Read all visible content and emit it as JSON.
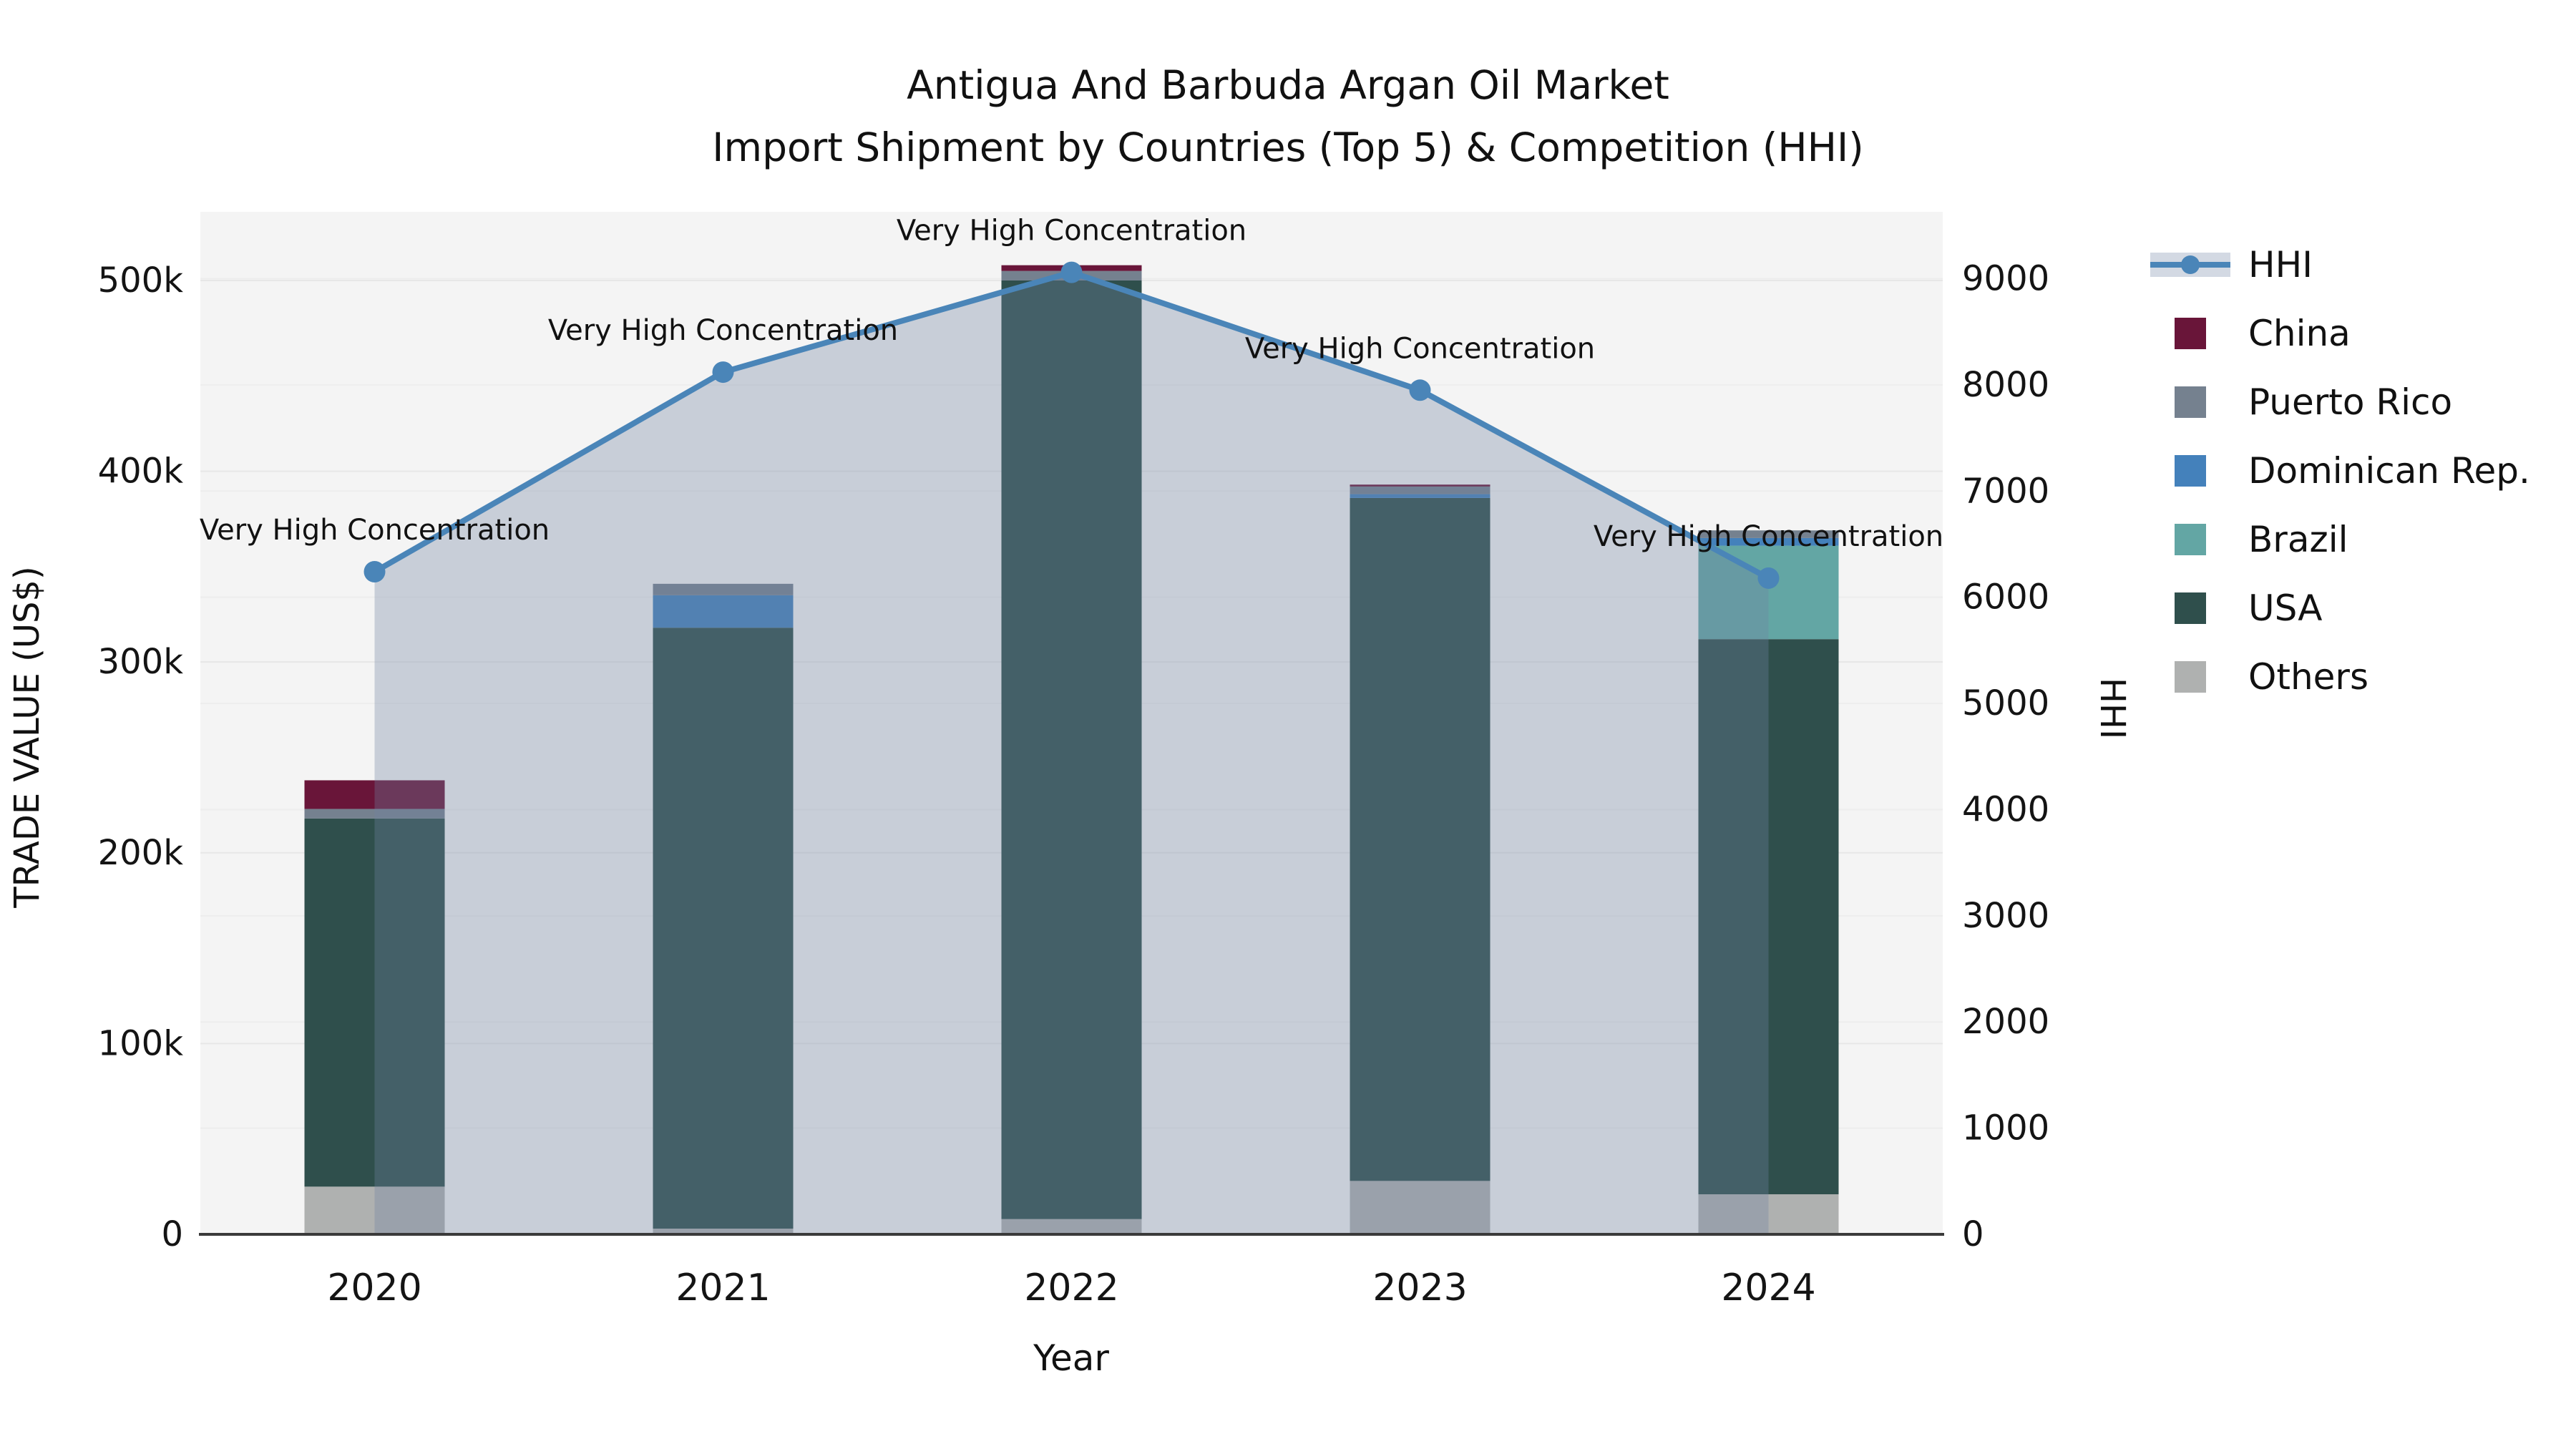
{
  "title": {
    "line1": "Antigua And Barbuda Argan Oil Market",
    "line2": "Import Shipment by Countries (Top 5) & Competition (HHI)"
  },
  "axes": {
    "left_title": "TRADE VALUE (US$)",
    "right_title": "HHI",
    "x_title": "Year"
  },
  "legend": {
    "items": [
      {
        "label": "HHI",
        "type": "line",
        "color": "#4A85B8"
      },
      {
        "label": "China",
        "type": "swatch",
        "color": "#691539"
      },
      {
        "label": "Puerto Rico",
        "type": "swatch",
        "color": "#75818F"
      },
      {
        "label": "Dominican Rep.",
        "type": "swatch",
        "color": "#4481BB"
      },
      {
        "label": "Brazil",
        "type": "swatch",
        "color": "#63A6A4"
      },
      {
        "label": "USA",
        "type": "swatch",
        "color": "#2F4F4C"
      },
      {
        "label": "Others",
        "type": "swatch",
        "color": "#AFB1B0"
      }
    ]
  },
  "chart_data": {
    "type": "combo-stacked-bar-line",
    "title": "Antigua And Barbuda Argan Oil Market — Import Shipment by Countries (Top 5) & Competition (HHI)",
    "categories": [
      "2020",
      "2021",
      "2022",
      "2023",
      "2024"
    ],
    "xlabel": "Year",
    "ylabel_left": "TRADE VALUE (US$)",
    "ylabel_right": "HHI",
    "bar_unit": "US$",
    "series": [
      {
        "name": "Others",
        "color": "#AFB1B0",
        "values": [
          25000,
          3000,
          8000,
          28000,
          21000
        ]
      },
      {
        "name": "USA",
        "color": "#2F4F4C",
        "values": [
          193000,
          315000,
          492000,
          358000,
          291000
        ]
      },
      {
        "name": "Brazil",
        "color": "#63A6A4",
        "values": [
          0,
          0,
          0,
          0,
          49000
        ]
      },
      {
        "name": "Dominican Rep.",
        "color": "#4481BB",
        "values": [
          0,
          17000,
          0,
          2000,
          4000
        ]
      },
      {
        "name": "Puerto Rico",
        "color": "#75818F",
        "values": [
          5000,
          6000,
          5000,
          4000,
          4000
        ]
      },
      {
        "name": "China",
        "color": "#691539",
        "values": [
          15000,
          0,
          3000,
          1000,
          0
        ]
      }
    ],
    "bar_totals": [
      238000,
      341000,
      508000,
      393000,
      369000
    ],
    "line": {
      "name": "HHI",
      "color": "#4A85B8",
      "fill": "rgba(113,132,162,0.33)",
      "values": [
        6240,
        8120,
        9060,
        7950,
        6180
      ]
    },
    "annotations": {
      "labels": [
        "Very High Concentration",
        "Very High Concentration",
        "Very High Concentration",
        "Very High Concentration",
        "Very High Concentration"
      ]
    },
    "left_axis": {
      "max": 536000,
      "ticks": [
        {
          "v": 0,
          "label": "0"
        },
        {
          "v": 100000,
          "label": "100k"
        },
        {
          "v": 200000,
          "label": "200k"
        },
        {
          "v": 300000,
          "label": "300k"
        },
        {
          "v": 400000,
          "label": "400k"
        },
        {
          "v": 500000,
          "label": "500k"
        }
      ]
    },
    "right_axis": {
      "max": 9630,
      "ticks": [
        {
          "v": 0,
          "label": "0"
        },
        {
          "v": 1000,
          "label": "1000"
        },
        {
          "v": 2000,
          "label": "2000"
        },
        {
          "v": 3000,
          "label": "3000"
        },
        {
          "v": 4000,
          "label": "4000"
        },
        {
          "v": 5000,
          "label": "5000"
        },
        {
          "v": 6000,
          "label": "6000"
        },
        {
          "v": 7000,
          "label": "7000"
        },
        {
          "v": 8000,
          "label": "8000"
        },
        {
          "v": 9000,
          "label": "9000"
        }
      ]
    },
    "plot_bg": "#F4F4F4",
    "grid_color_left": "#E7E7E7",
    "grid_color_right": "#EDEDED",
    "baseline_color": "#3A3A3A"
  }
}
